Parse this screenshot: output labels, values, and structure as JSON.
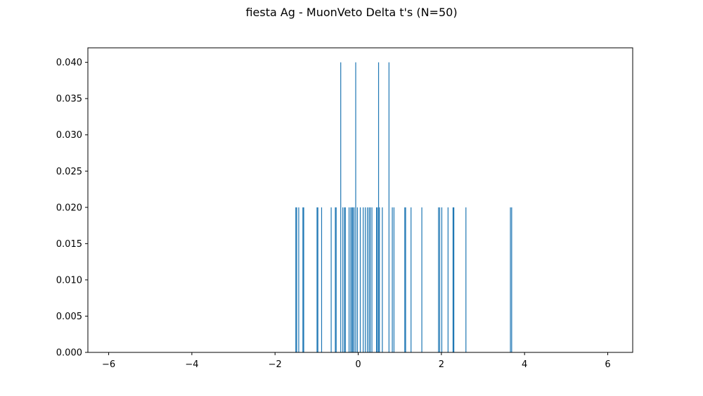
{
  "chart_data": {
    "type": "bar",
    "title": "fiesta Ag - MuonVeto Delta t's (N=50)",
    "xlabel": "",
    "ylabel": "",
    "xlim": [
      -6.5,
      6.6
    ],
    "ylim": [
      0,
      0.042
    ],
    "xticks": [
      -6,
      -4,
      -2,
      0,
      2,
      4,
      6
    ],
    "xtick_labels": [
      "−6",
      "−4",
      "−2",
      "0",
      "2",
      "4",
      "6"
    ],
    "yticks": [
      0,
      0.005,
      0.01,
      0.015,
      0.02,
      0.025,
      0.03,
      0.035,
      0.04
    ],
    "ytick_labels": [
      "0.000",
      "0.005",
      "0.010",
      "0.015",
      "0.020",
      "0.025",
      "0.030",
      "0.035",
      "0.040"
    ],
    "grid": false,
    "bar_color": "#1f77b4",
    "x": [
      -1.5,
      -1.48,
      -1.43,
      -1.33,
      -1.31,
      -0.99,
      -0.97,
      -0.88,
      -0.65,
      -0.55,
      -0.53,
      -0.42,
      -0.37,
      -0.33,
      -0.31,
      -0.22,
      -0.18,
      -0.15,
      -0.13,
      -0.1,
      -0.06,
      -0.02,
      0.05,
      0.12,
      0.17,
      0.22,
      0.26,
      0.29,
      0.33,
      0.44,
      0.46,
      0.49,
      0.51,
      0.58,
      0.74,
      0.82,
      0.86,
      1.12,
      1.14,
      1.27,
      1.53,
      1.93,
      1.96,
      2.01,
      2.16,
      2.28,
      2.3,
      2.59,
      3.66,
      3.69
    ],
    "values": [
      0.02,
      0.02,
      0.02,
      0.02,
      0.02,
      0.02,
      0.02,
      0.02,
      0.02,
      0.02,
      0.02,
      0.04,
      0.02,
      0.02,
      0.02,
      0.02,
      0.02,
      0.02,
      0.02,
      0.02,
      0.04,
      0.02,
      0.02,
      0.02,
      0.02,
      0.02,
      0.02,
      0.02,
      0.02,
      0.02,
      0.02,
      0.04,
      0.02,
      0.02,
      0.04,
      0.02,
      0.02,
      0.02,
      0.02,
      0.02,
      0.02,
      0.02,
      0.02,
      0.02,
      0.02,
      0.02,
      0.02,
      0.02,
      0.02,
      0.02
    ]
  }
}
